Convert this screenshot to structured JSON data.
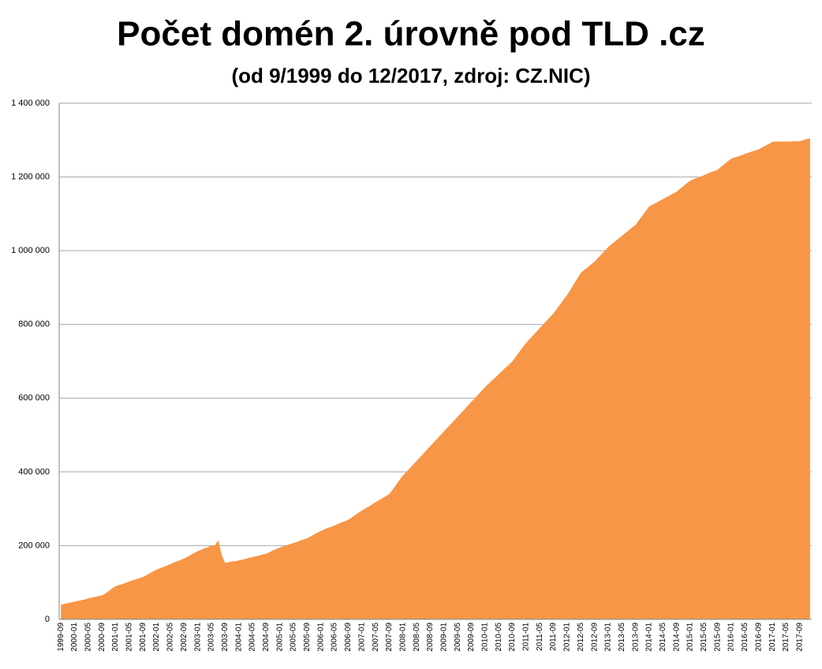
{
  "chart_data": {
    "type": "area",
    "title": "Počet domén 2. úrovně pod TLD .cz",
    "subtitle": "(od 9/1999 do 12/2017, zdroj: CZ.NIC)",
    "color": "#f79646",
    "grid": true,
    "ylim": [
      0,
      1400000
    ],
    "yticks": [
      0,
      {
        "value": 200000,
        "label": "200 000"
      },
      {
        "value": 400000,
        "label": "400 000"
      },
      {
        "value": 600000,
        "label": "600 000"
      },
      {
        "value": 800000,
        "label": "800 000"
      },
      {
        "value": 1000000,
        "label": "1 000 000"
      },
      {
        "value": 1200000,
        "label": "1 200 000"
      },
      {
        "value": 1400000,
        "label": "1 400 000"
      }
    ],
    "categories": [
      "1999-09",
      null,
      null,
      null,
      "2000-01",
      null,
      null,
      null,
      "2000-05",
      null,
      null,
      null,
      "2000-09",
      null,
      null,
      null,
      "2001-01",
      null,
      null,
      null,
      "2001-05",
      null,
      null,
      null,
      "2001-09",
      null,
      null,
      null,
      "2002-01",
      null,
      null,
      null,
      "2002-05",
      null,
      null,
      null,
      "2002-09",
      null,
      null,
      null,
      "2003-01",
      null,
      null,
      null,
      "2003-05",
      null,
      null,
      null,
      "2003-09",
      null,
      null,
      null,
      "2004-01",
      null,
      null,
      null,
      "2004-05",
      null,
      null,
      null,
      "2004-09",
      null,
      null,
      null,
      "2005-01",
      null,
      null,
      null,
      "2005-05",
      null,
      null,
      null,
      "2005-09",
      null,
      null,
      null,
      "2006-01",
      null,
      null,
      null,
      "2006-05",
      null,
      null,
      null,
      "2006-09",
      null,
      null,
      null,
      "2007-01",
      null,
      null,
      null,
      "2007-05",
      null,
      null,
      null,
      "2007-09",
      null,
      null,
      null,
      "2008-01",
      null,
      null,
      null,
      "2008-05",
      null,
      null,
      null,
      "2008-09",
      null,
      null,
      null,
      "2009-01",
      null,
      null,
      null,
      "2009-05",
      null,
      null,
      null,
      "2009-09",
      null,
      null,
      null,
      "2010-01",
      null,
      null,
      null,
      "2010-05",
      null,
      null,
      null,
      "2010-09",
      null,
      null,
      null,
      "2011-01",
      null,
      null,
      null,
      "2011-05",
      null,
      null,
      null,
      "2011-09",
      null,
      null,
      null,
      "2012-01",
      null,
      null,
      null,
      "2012-05",
      null,
      null,
      null,
      "2012-09",
      null,
      null,
      null,
      "2013-01",
      null,
      null,
      null,
      "2013-05",
      null,
      null,
      null,
      "2013-09",
      null,
      null,
      null,
      "2014-01",
      null,
      null,
      null,
      "2014-05",
      null,
      null,
      null,
      "2014-09",
      null,
      null,
      null,
      "2015-01",
      null,
      null,
      null,
      "2015-05",
      null,
      null,
      null,
      "2015-09",
      null,
      null,
      null,
      "2016-01",
      null,
      null,
      null,
      "2016-05",
      null,
      null,
      null,
      "2016-09",
      null,
      null,
      null,
      "2017-01",
      null,
      null,
      null,
      "2017-05",
      null,
      null,
      null,
      "2017-09",
      null,
      null,
      null
    ],
    "values": [
      40000,
      42000,
      44000,
      46000,
      48000,
      50000,
      52000,
      54000,
      57000,
      59000,
      61000,
      63000,
      65000,
      70000,
      77000,
      84000,
      90000,
      93000,
      96000,
      99000,
      103000,
      106000,
      109000,
      112000,
      115000,
      120000,
      125000,
      130000,
      135000,
      139000,
      142000,
      146000,
      150000,
      154000,
      158000,
      161000,
      165000,
      170000,
      175000,
      180000,
      185000,
      189000,
      193000,
      196000,
      200000,
      200000,
      215000,
      175000,
      153000,
      155000,
      157000,
      158000,
      160000,
      162000,
      164000,
      167000,
      169000,
      171000,
      173000,
      176000,
      178000,
      182000,
      187000,
      191000,
      195000,
      198000,
      201000,
      204000,
      207000,
      210000,
      214000,
      217000,
      220000,
      225000,
      230000,
      235000,
      240000,
      244000,
      248000,
      251000,
      255000,
      259000,
      263000,
      266000,
      270000,
      276000,
      283000,
      289000,
      295000,
      301000,
      306000,
      312000,
      318000,
      323000,
      329000,
      334000,
      340000,
      352000,
      365000,
      378000,
      390000,
      400000,
      410000,
      420000,
      430000,
      440000,
      450000,
      460000,
      470000,
      480000,
      490000,
      500000,
      510000,
      520000,
      530000,
      540000,
      550000,
      560000,
      570000,
      580000,
      590000,
      600000,
      610000,
      620000,
      630000,
      639000,
      648000,
      656000,
      665000,
      674000,
      683000,
      691000,
      700000,
      713000,
      725000,
      738000,
      750000,
      760000,
      770000,
      780000,
      790000,
      800000,
      810000,
      820000,
      830000,
      843000,
      855000,
      868000,
      880000,
      895000,
      910000,
      925000,
      940000,
      948000,
      955000,
      963000,
      970000,
      980000,
      990000,
      1000000,
      1010000,
      1018000,
      1025000,
      1033000,
      1040000,
      1048000,
      1055000,
      1063000,
      1070000,
      1083000,
      1095000,
      1108000,
      1120000,
      1125000,
      1130000,
      1135000,
      1140000,
      1145000,
      1150000,
      1155000,
      1160000,
      1168000,
      1175000,
      1183000,
      1190000,
      1194000,
      1198000,
      1201000,
      1205000,
      1209000,
      1213000,
      1216000,
      1220000,
      1228000,
      1235000,
      1243000,
      1250000,
      1253000,
      1256000,
      1259000,
      1263000,
      1266000,
      1269000,
      1272000,
      1275000,
      1280000,
      1285000,
      1290000,
      1295000,
      1296000,
      1296000,
      1296000,
      1296000,
      1296000,
      1297000,
      1297000,
      1297000,
      1300000,
      1303000,
      1305000
    ]
  }
}
